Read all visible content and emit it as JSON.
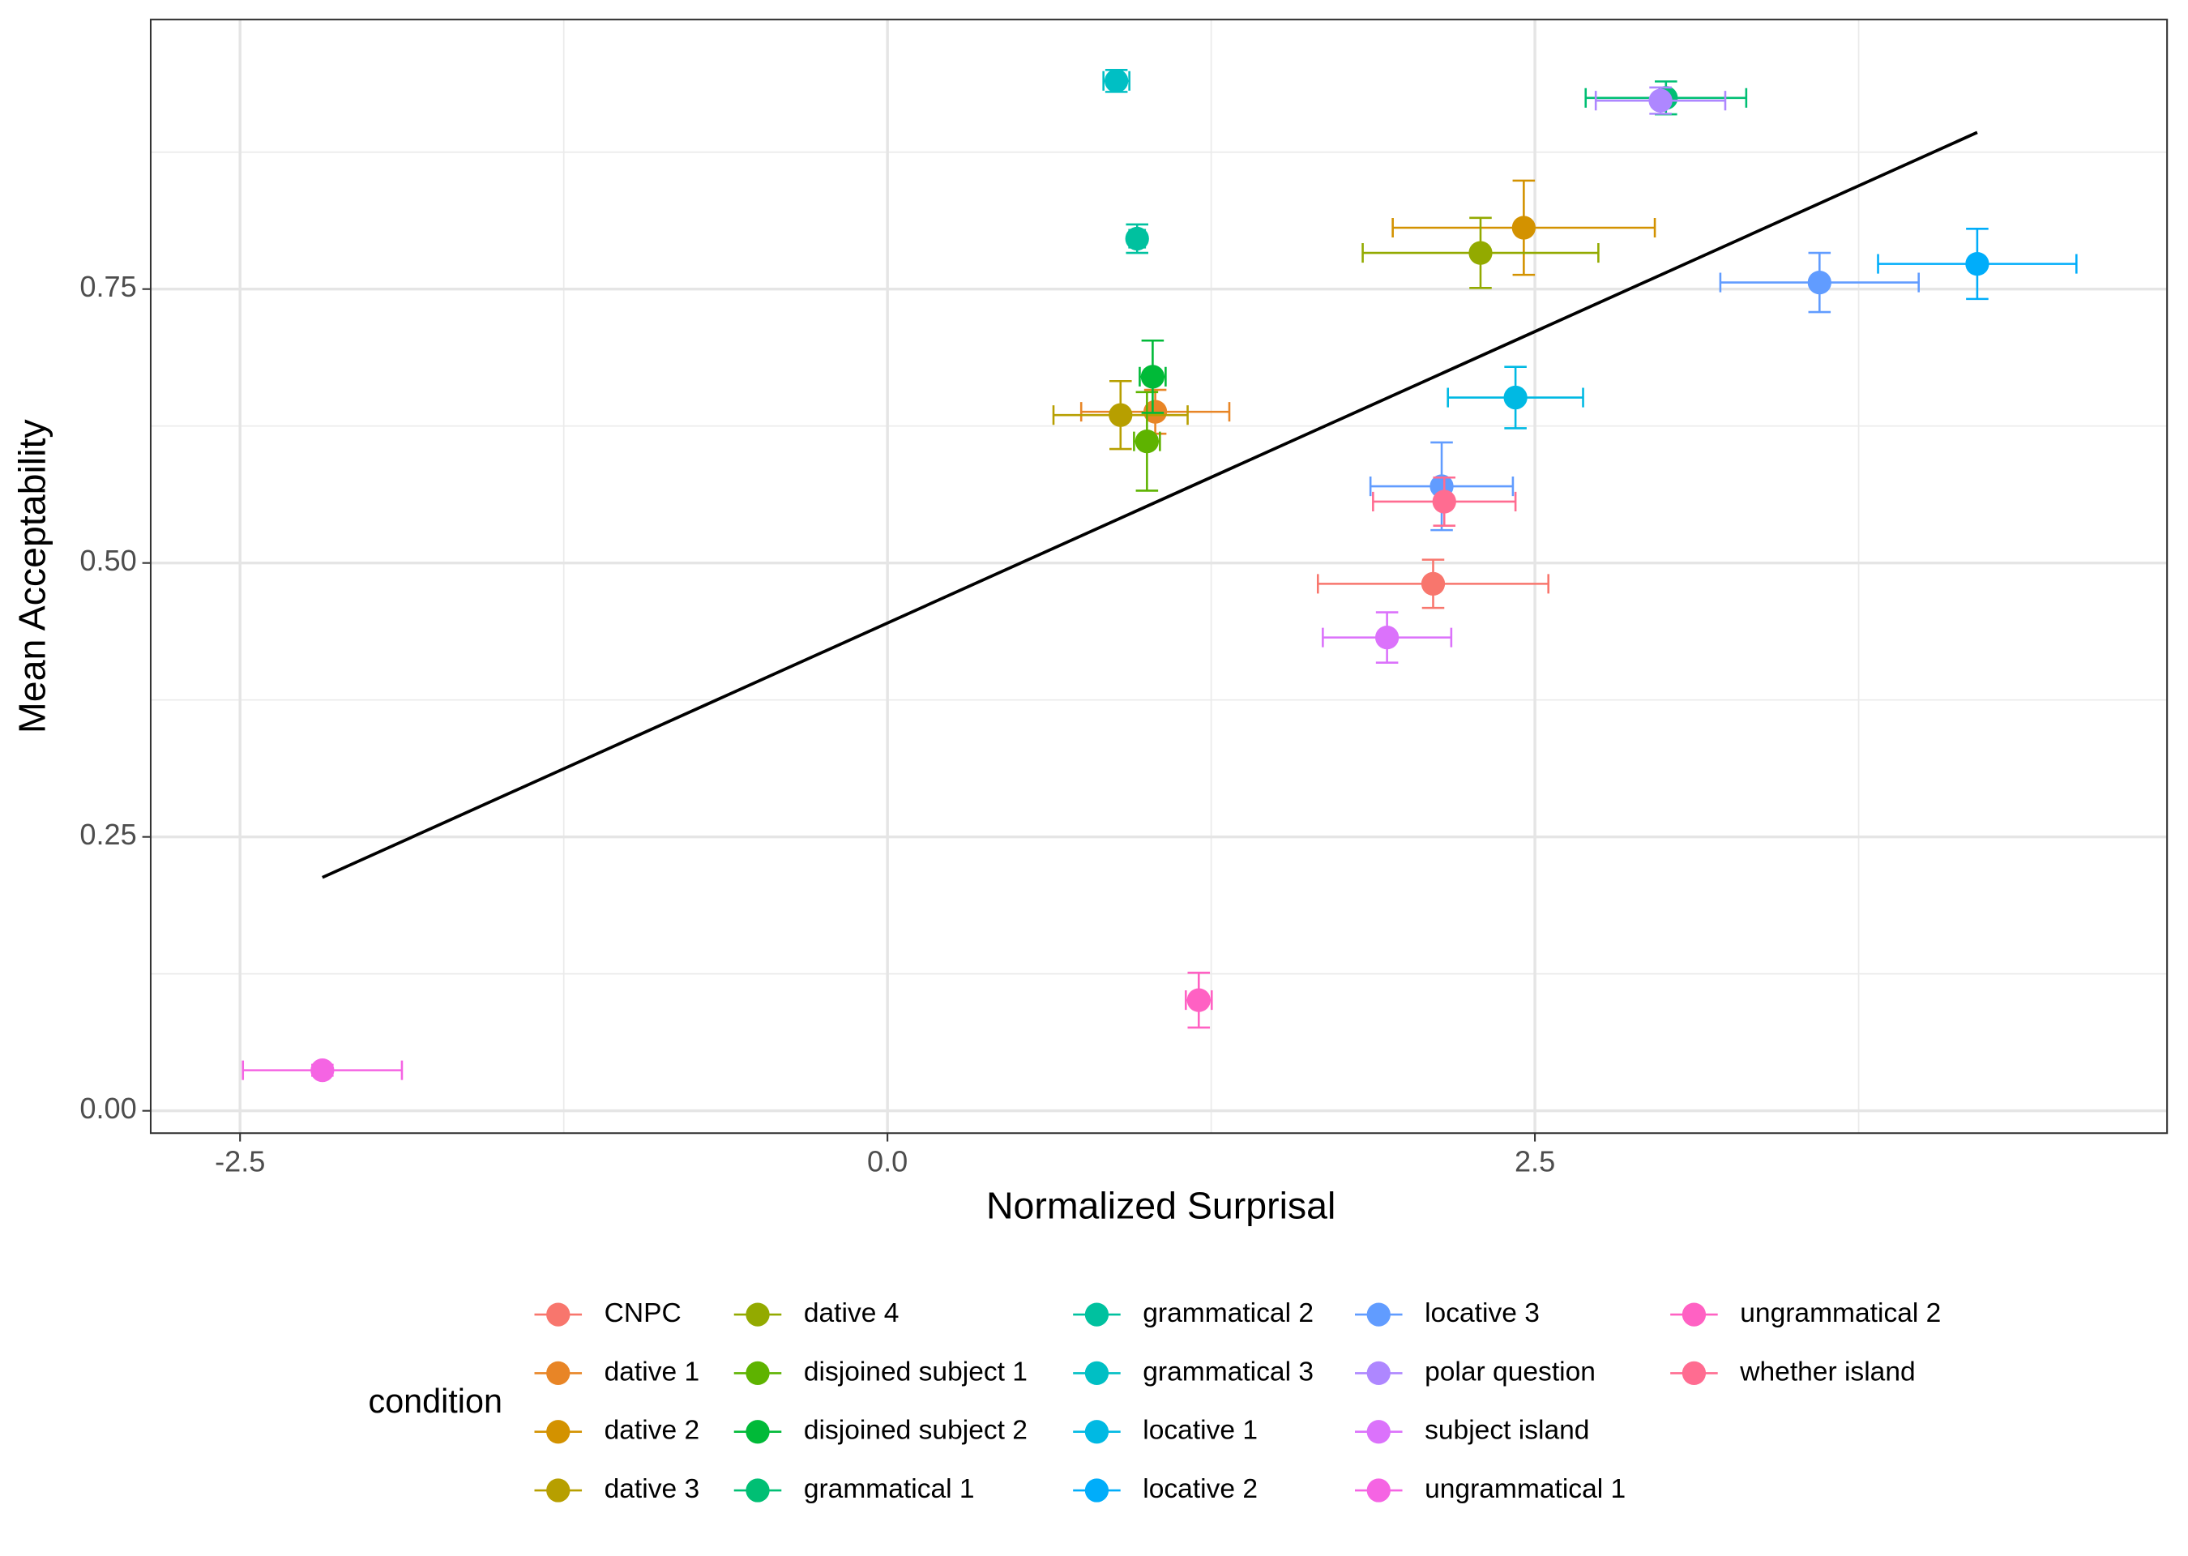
{
  "chart_data": {
    "type": "scatter",
    "xlabel": "Normalized Surprisal",
    "ylabel": "Mean Acceptability",
    "xlim": [
      -2.845,
      4.941
    ],
    "ylim": [
      -0.0204,
      0.996
    ],
    "xticks": [
      {
        "value": -2.5,
        "label": "-2.5"
      },
      {
        "value": 0,
        "label": "0.0"
      },
      {
        "value": 2.5,
        "label": "2.5"
      }
    ],
    "yticks": [
      {
        "value": 0,
        "label": "0.00"
      },
      {
        "value": 0.25,
        "label": "0.25"
      },
      {
        "value": 0.5,
        "label": "0.50"
      },
      {
        "value": 0.75,
        "label": "0.75"
      }
    ],
    "x_minor_grid": [
      -1.25,
      1.25,
      3.75
    ],
    "y_minor_grid": [
      0.125,
      0.375,
      0.625,
      0.875
    ],
    "grid": true,
    "legend_title": "condition",
    "legend_position": "bottom",
    "fit_line": {
      "color": "#000000",
      "x": [
        -2.182,
        4.208
      ],
      "y": [
        0.213,
        0.893
      ]
    },
    "series": [
      {
        "name": "CNPC",
        "color": "#F8766D",
        "x": [
          2.107
        ],
        "y": [
          0.481
        ],
        "xerr": [
          0.445
        ],
        "yerr": [
          0.022
        ]
      },
      {
        "name": "dative 1",
        "color": "#E88526",
        "x": [
          1.034
        ],
        "y": [
          0.638
        ],
        "xerr": [
          0.286
        ],
        "yerr": [
          0.02
        ]
      },
      {
        "name": "dative 2",
        "color": "#D39200",
        "x": [
          2.457
        ],
        "y": [
          0.806
        ],
        "xerr": [
          0.506
        ],
        "yerr": [
          0.043
        ]
      },
      {
        "name": "dative 3",
        "color": "#B79F00",
        "x": [
          0.9
        ],
        "y": [
          0.635
        ],
        "xerr": [
          0.259
        ],
        "yerr": [
          0.031
        ]
      },
      {
        "name": "dative 4",
        "color": "#93AA00",
        "x": [
          2.29
        ],
        "y": [
          0.783
        ],
        "xerr": [
          0.455
        ],
        "yerr": [
          0.032
        ]
      },
      {
        "name": "disjoined subject 1",
        "color": "#5EB300",
        "x": [
          1.002
        ],
        "y": [
          0.611
        ],
        "xerr": [
          0.05
        ],
        "yerr": [
          0.045
        ]
      },
      {
        "name": "disjoined subject 2",
        "color": "#00BA38",
        "x": [
          1.024
        ],
        "y": [
          0.67
        ],
        "xerr": [
          0.05
        ],
        "yerr": [
          0.033
        ]
      },
      {
        "name": "grammatical 1",
        "color": "#00BF74",
        "x": [
          3.006
        ],
        "y": [
          0.9245
        ],
        "xerr": [
          0.31
        ],
        "yerr": [
          0.015
        ]
      },
      {
        "name": "grammatical 2",
        "color": "#00C19F",
        "x": [
          0.964
        ],
        "y": [
          0.796
        ],
        "xerr": [
          0.03
        ],
        "yerr": [
          0.013
        ]
      },
      {
        "name": "grammatical 3",
        "color": "#00BFC4",
        "x": [
          0.884
        ],
        "y": [
          0.94
        ],
        "xerr": [
          0.05
        ],
        "yerr": [
          0.01
        ]
      },
      {
        "name": "locative 1",
        "color": "#00B9E3",
        "x": [
          2.425
        ],
        "y": [
          0.651
        ],
        "xerr": [
          0.261
        ],
        "yerr": [
          0.028
        ]
      },
      {
        "name": "locative 2",
        "color": "#00ADFA",
        "x": [
          4.208
        ],
        "y": [
          0.773
        ],
        "xerr": [
          0.383
        ],
        "yerr": [
          0.032
        ]
      },
      {
        "name": "locative 3",
        "color": "#619CFF",
        "x": [
          3.599,
          2.14
        ],
        "y": [
          0.756,
          0.57
        ],
        "xerr": [
          0.383,
          0.275
        ],
        "yerr": [
          0.027,
          0.04
        ]
      },
      {
        "name": "polar question",
        "color": "#AE87FF",
        "x": [
          2.985
        ],
        "y": [
          0.922
        ],
        "xerr": [
          0.25
        ],
        "yerr": [
          0.012
        ]
      },
      {
        "name": "subject island",
        "color": "#DB72FB",
        "x": [
          1.929
        ],
        "y": [
          0.432
        ],
        "xerr": [
          0.248
        ],
        "yerr": [
          0.023
        ]
      },
      {
        "name": "ungrammatical 1",
        "color": "#F564E3",
        "x": [
          -2.182
        ],
        "y": [
          0.037
        ],
        "xerr": [
          0.307
        ],
        "yerr": [
          0.005
        ]
      },
      {
        "name": "ungrammatical 2",
        "color": "#FF61C3",
        "x": [
          1.202
        ],
        "y": [
          0.101
        ],
        "xerr": [
          0.05
        ],
        "yerr": [
          0.025
        ]
      },
      {
        "name": "whether island",
        "color": "#FF6C91",
        "x": [
          2.15
        ],
        "y": [
          0.556
        ],
        "xerr": [
          0.275
        ],
        "yerr": [
          0.022
        ]
      }
    ]
  }
}
